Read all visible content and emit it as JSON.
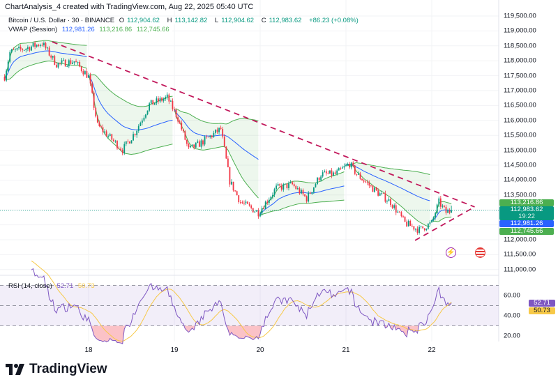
{
  "header": {
    "created_by": "ChartAnalysis_4 created with TradingView.com, Aug 22, 2025 05:40 UTC"
  },
  "symbol": {
    "name": "Bitcoin / U.S. Dollar · 30 · BINANCE",
    "open_label": "O",
    "open": "112,904.62",
    "high_label": "H",
    "high": "113,142.82",
    "low_label": "L",
    "low": "112,904.62",
    "close_label": "C",
    "close": "112,983.62",
    "change": "+86.23 (+0.08%)"
  },
  "vwap": {
    "label": "VWAP (Session)",
    "vwap": "112,981.26",
    "upper": "113,216.86",
    "lower": "112,745.66"
  },
  "rsi": {
    "label": "RSI (14, close)",
    "value": "52.71",
    "ma": "50.73",
    "ticks": [
      "60.00",
      "40.00",
      "20.00"
    ]
  },
  "price_axis": {
    "ticks": [
      "119,500.00",
      "119,000.00",
      "118,500.00",
      "118,000.00",
      "117,500.00",
      "117,000.00",
      "116,500.00",
      "116,000.00",
      "115,500.00",
      "115,000.00",
      "114,500.00",
      "114,000.00",
      "113,500.00",
      "112,000.00",
      "111,500.00",
      "111,000.00"
    ],
    "boxes": {
      "vwap_upper": "113,216.86",
      "last_price": "112,983.62",
      "countdown": "19:22",
      "vwap": "112,981.26",
      "vwap_lower": "112,745.66"
    }
  },
  "time_axis": {
    "ticks": [
      "18",
      "19",
      "20",
      "21",
      "22"
    ]
  },
  "branding": {
    "logo_text": "TradingView"
  },
  "colors": {
    "up": "#089981",
    "down": "#f23645",
    "vwap": "#2962ff",
    "band": "#4caf50",
    "trendline": "#c2185b",
    "rsi": "#7e57c2",
    "rsi_ma": "#f7c948"
  },
  "chart_data": {
    "type": "candlestick",
    "symbol": "BTCUSD",
    "interval": "30m",
    "x_axis": "time (UTC), Aug 17 – Aug 22, 2025",
    "y_range": [
      110800,
      119700
    ],
    "close_path": [
      [
        "2025-08-17T00:30",
        117468
      ],
      [
        "2025-08-17T02:00",
        118285
      ],
      [
        "2025-08-17T06:00",
        118402
      ],
      [
        "2025-08-17T11:00",
        118589
      ],
      [
        "2025-08-17T15:00",
        117888
      ],
      [
        "2025-08-17T20:00",
        117982
      ],
      [
        "2025-08-18T00:00",
        117468
      ],
      [
        "2025-08-18T02:30",
        115833
      ],
      [
        "2025-08-18T06:30",
        115365
      ],
      [
        "2025-08-18T09:30",
        115015
      ],
      [
        "2025-08-18T13:00",
        115600
      ],
      [
        "2025-08-18T17:00",
        116533
      ],
      [
        "2025-08-18T22:00",
        116767
      ],
      [
        "2025-08-19T01:00",
        116066
      ],
      [
        "2025-08-19T04:00",
        115015
      ],
      [
        "2025-08-19T07:30",
        115248
      ],
      [
        "2025-08-19T13:00",
        115716
      ],
      [
        "2025-08-19T15:30",
        113964
      ],
      [
        "2025-08-19T18:30",
        113263
      ],
      [
        "2025-08-19T23:30",
        112913
      ],
      [
        "2025-08-20T04:30",
        113730
      ],
      [
        "2025-08-20T09:00",
        113847
      ],
      [
        "2025-08-20T13:00",
        113380
      ],
      [
        "2025-08-20T17:00",
        114197
      ],
      [
        "2025-08-20T21:00",
        114197
      ],
      [
        "2025-08-21T01:00",
        114548
      ],
      [
        "2025-08-21T03:00",
        114197
      ],
      [
        "2025-08-21T08:30",
        113613
      ],
      [
        "2025-08-21T12:30",
        113263
      ],
      [
        "2025-08-21T16:30",
        112562
      ],
      [
        "2025-08-21T20:30",
        112328
      ],
      [
        "2025-08-22T00:00",
        112562
      ],
      [
        "2025-08-22T02:00",
        113263
      ],
      [
        "2025-08-22T04:00",
        112913
      ],
      [
        "2025-08-22T05:30",
        112983
      ]
    ],
    "last_bar": {
      "open": 112904.62,
      "high": 113142.82,
      "low": 112904.62,
      "close": 112983.62
    },
    "trendlines": [
      {
        "kind": "descending resistance",
        "from": [
          "2025-08-17T13:50",
          118635
        ],
        "to": [
          "2025-08-22T12:00",
          113100
        ]
      },
      {
        "kind": "ascending support",
        "from": [
          "2025-08-21T19:20",
          111978
        ],
        "to": [
          "2025-08-22T12:00",
          113100
        ]
      }
    ],
    "rsi_levels": [
      70,
      50,
      30
    ],
    "rsi_range": [
      15,
      85
    ]
  }
}
